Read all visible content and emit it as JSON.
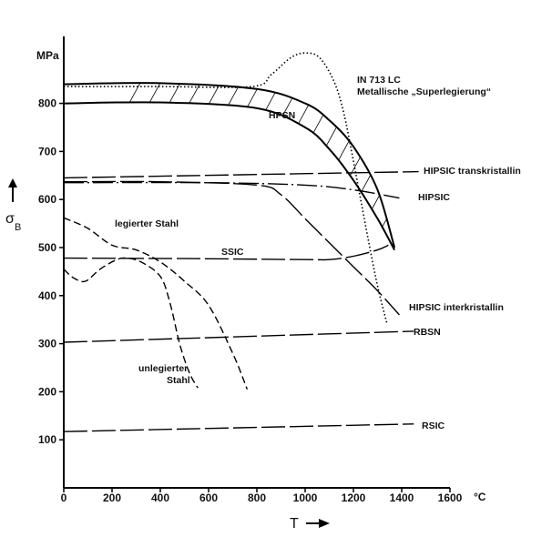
{
  "chart_data": {
    "type": "line",
    "x_unit": "°C",
    "y_unit": "MPa",
    "xlabel": "T",
    "ylabel_symbol": "σ",
    "ylabel_subscript": "B",
    "xlim": [
      0,
      1600
    ],
    "ylim": [
      0,
      940
    ],
    "x_ticks": [
      0,
      200,
      400,
      600,
      800,
      1000,
      1200,
      1400,
      1600
    ],
    "y_ticks": [
      100,
      200,
      300,
      400,
      500,
      600,
      700,
      800
    ],
    "grid": false,
    "series": [
      {
        "name": "IN 713 LC",
        "name_line2": "Metallische „Superlegierung“",
        "style": "dotted",
        "x": [
          0,
          400,
          780,
          860,
          940,
          1000,
          1060,
          1120,
          1160,
          1200,
          1260,
          1300,
          1340
        ],
        "y": [
          835,
          835,
          835,
          860,
          895,
          905,
          895,
          845,
          780,
          680,
          520,
          420,
          340
        ]
      },
      {
        "name": "HPSN",
        "style": "band",
        "x": [
          0,
          400,
          800,
          1000,
          1100,
          1200,
          1300,
          1370
        ],
        "y_upper": [
          840,
          842,
          830,
          800,
          765,
          710,
          620,
          500
        ],
        "y_lower": [
          800,
          802,
          790,
          750,
          705,
          640,
          560,
          495
        ]
      },
      {
        "name": "HIPSIC transkristallin",
        "style": "long-dash",
        "x": [
          0,
          1470
        ],
        "y": [
          645,
          658
        ]
      },
      {
        "name": "HIPSIC",
        "style": "dash-dot",
        "x": [
          0,
          600,
          1000,
          1200,
          1390
        ],
        "y": [
          635,
          635,
          630,
          620,
          603
        ]
      },
      {
        "name": "HIPSIC interkristallin",
        "style": "long-dash",
        "x": [
          0,
          400,
          800,
          900,
          1000,
          1100,
          1200,
          1300,
          1390
        ],
        "y": [
          637,
          637,
          630,
          610,
          560,
          510,
          460,
          410,
          360
        ]
      },
      {
        "name": "SSIC",
        "style": "long-dash",
        "x": [
          0,
          500,
          1000,
          1100,
          1200,
          1300,
          1345
        ],
        "y": [
          478,
          477,
          475,
          475,
          482,
          495,
          505
        ]
      },
      {
        "name": "legierter Stahl",
        "style": "dash",
        "x": [
          0,
          100,
          200,
          300,
          400,
          500,
          600,
          700,
          760
        ],
        "y": [
          562,
          540,
          505,
          495,
          470,
          430,
          380,
          280,
          205
        ]
      },
      {
        "name": "unlegierter Stahl",
        "style": "dash",
        "x": [
          0,
          40,
          90,
          150,
          220,
          260,
          320,
          400,
          440,
          480,
          520,
          555
        ],
        "y": [
          455,
          437,
          430,
          455,
          475,
          478,
          470,
          440,
          385,
          300,
          240,
          208
        ]
      },
      {
        "name": "RBSN",
        "style": "long-dash",
        "x": [
          0,
          1450
        ],
        "y": [
          303,
          326
        ]
      },
      {
        "name": "RSIC",
        "style": "long-dash",
        "x": [
          0,
          1450
        ],
        "y": [
          117,
          133
        ]
      }
    ]
  }
}
